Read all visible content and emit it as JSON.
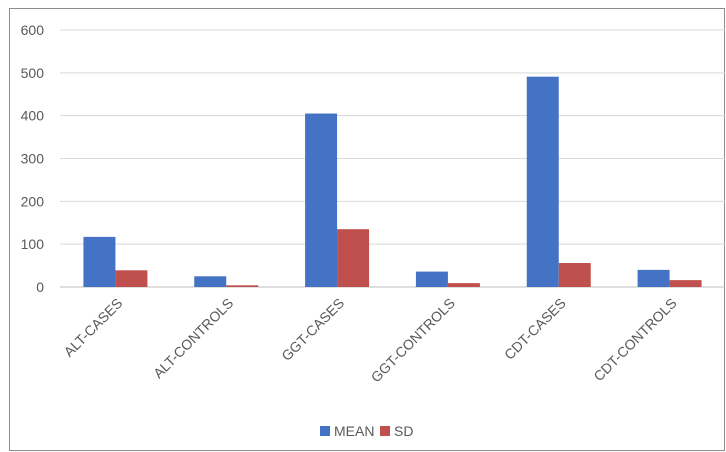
{
  "chart_data": {
    "type": "bar",
    "categories": [
      "ALT-CASES",
      "ALT-CONTROLS",
      "GGT-CASES",
      "GGT-CONTROLS",
      "CDT-CASES",
      "CDT-CONTROLS"
    ],
    "series": [
      {
        "name": "MEAN",
        "color": "#4472c4",
        "values": [
          117,
          25,
          405,
          36,
          491,
          40
        ]
      },
      {
        "name": "SD",
        "color": "#c0504d",
        "values": [
          39,
          4,
          135,
          9,
          56,
          16
        ]
      }
    ],
    "ylim": [
      0,
      600
    ],
    "yticks": [
      0,
      100,
      200,
      300,
      400,
      500,
      600
    ],
    "grid": true,
    "legend": "bottom"
  }
}
